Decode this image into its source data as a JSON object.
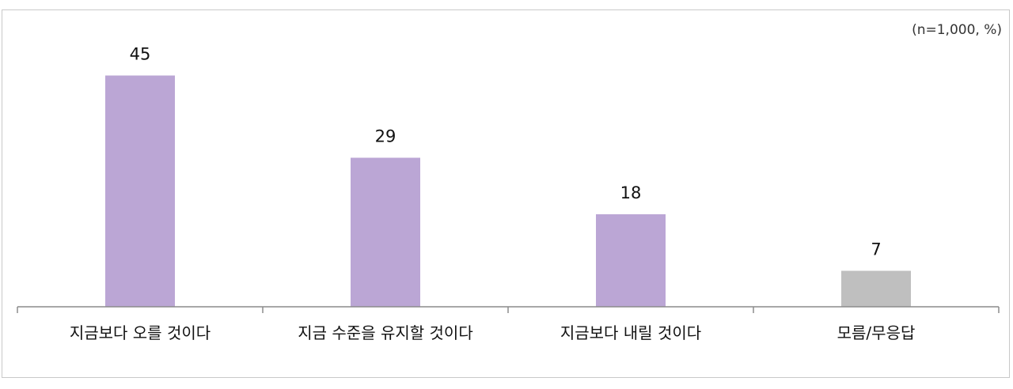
{
  "note": "(n=1,000, %)",
  "chart_data": {
    "type": "bar",
    "categories": [
      "지금보다 오를 것이다",
      "지금 수준을 유지할 것이다",
      "지금보다 내릴 것이다",
      "모름/무응답"
    ],
    "values": [
      45,
      29,
      18,
      7
    ],
    "title": "",
    "xlabel": "",
    "ylabel": "",
    "ylim": [
      0,
      50
    ],
    "grid": false,
    "legend": "none",
    "bar_colors": [
      "#bba6d5",
      "#bba6d5",
      "#bba6d5",
      "#bfbfbf"
    ],
    "data_labels": true
  }
}
